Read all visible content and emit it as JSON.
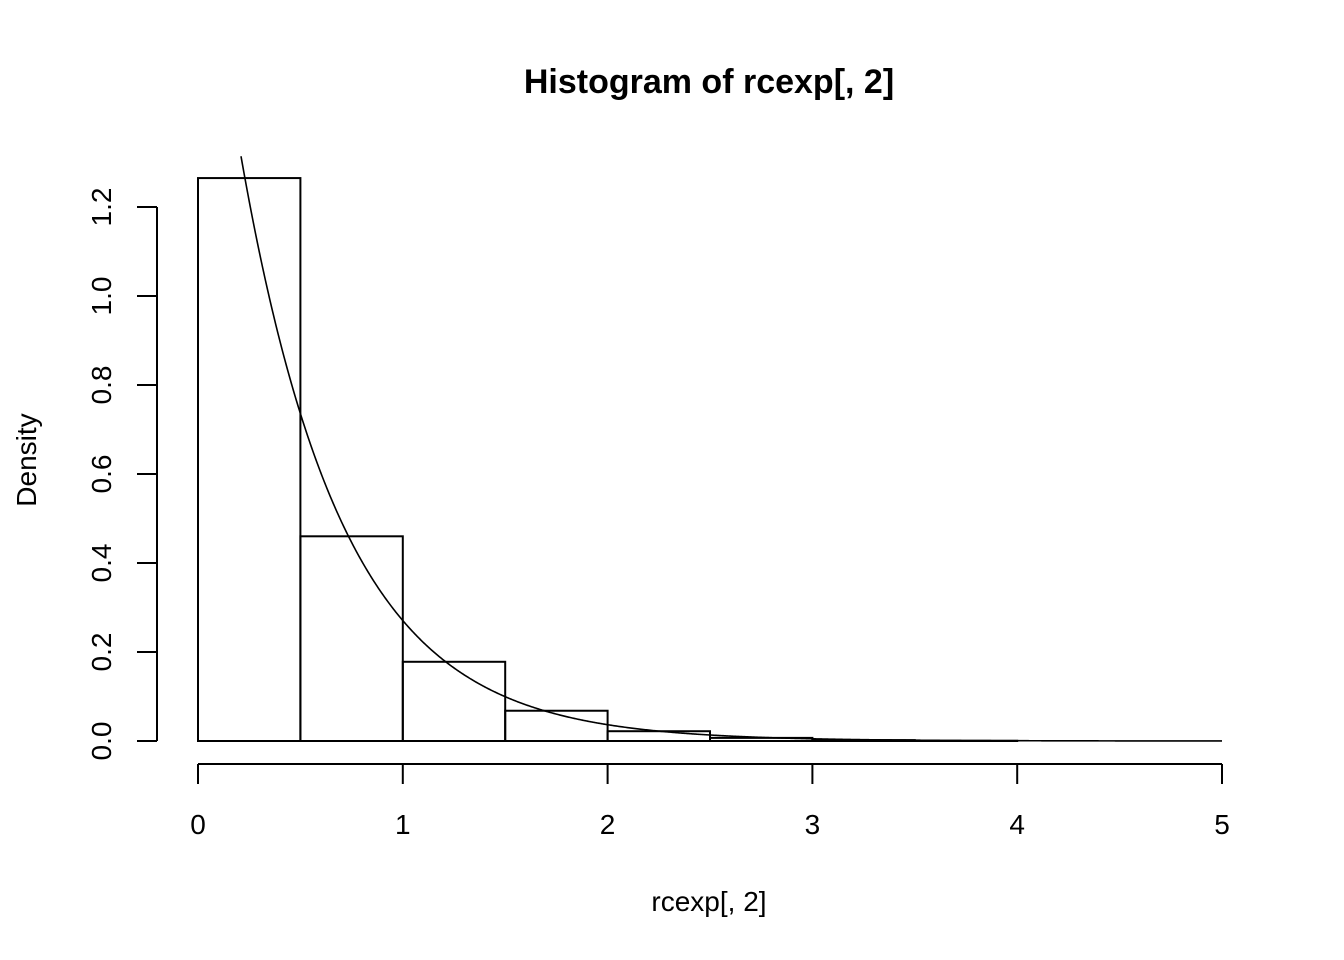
{
  "chart_data": {
    "type": "bar",
    "title": "Histogram of rcexp[, 2]",
    "xlabel": "rcexp[, 2]",
    "ylabel": "Density",
    "xlim": [
      0,
      5
    ],
    "ylim": [
      0,
      1.2
    ],
    "x_ticks": [
      0,
      1,
      2,
      3,
      4,
      5
    ],
    "y_ticks": [
      "0.0",
      "0.2",
      "0.4",
      "0.6",
      "0.8",
      "1.0",
      "1.2"
    ],
    "bins": [
      {
        "x0": 0.0,
        "x1": 0.5,
        "density": 1.265
      },
      {
        "x0": 0.5,
        "x1": 1.0,
        "density": 0.46
      },
      {
        "x0": 1.0,
        "x1": 1.5,
        "density": 0.178
      },
      {
        "x0": 1.5,
        "x1": 2.0,
        "density": 0.068
      },
      {
        "x0": 2.0,
        "x1": 2.5,
        "density": 0.022
      },
      {
        "x0": 2.5,
        "x1": 3.0,
        "density": 0.007
      },
      {
        "x0": 3.0,
        "x1": 3.5,
        "density": 0.002
      },
      {
        "x0": 3.5,
        "x1": 4.0,
        "density": 0.0005
      },
      {
        "x0": 4.0,
        "x1": 4.5,
        "density": 0.0
      },
      {
        "x0": 4.5,
        "x1": 5.0,
        "density": 0.0
      }
    ],
    "overlay_curve": {
      "kind": "exponential density",
      "rate": 2
    },
    "grid": false,
    "legend": "none"
  }
}
